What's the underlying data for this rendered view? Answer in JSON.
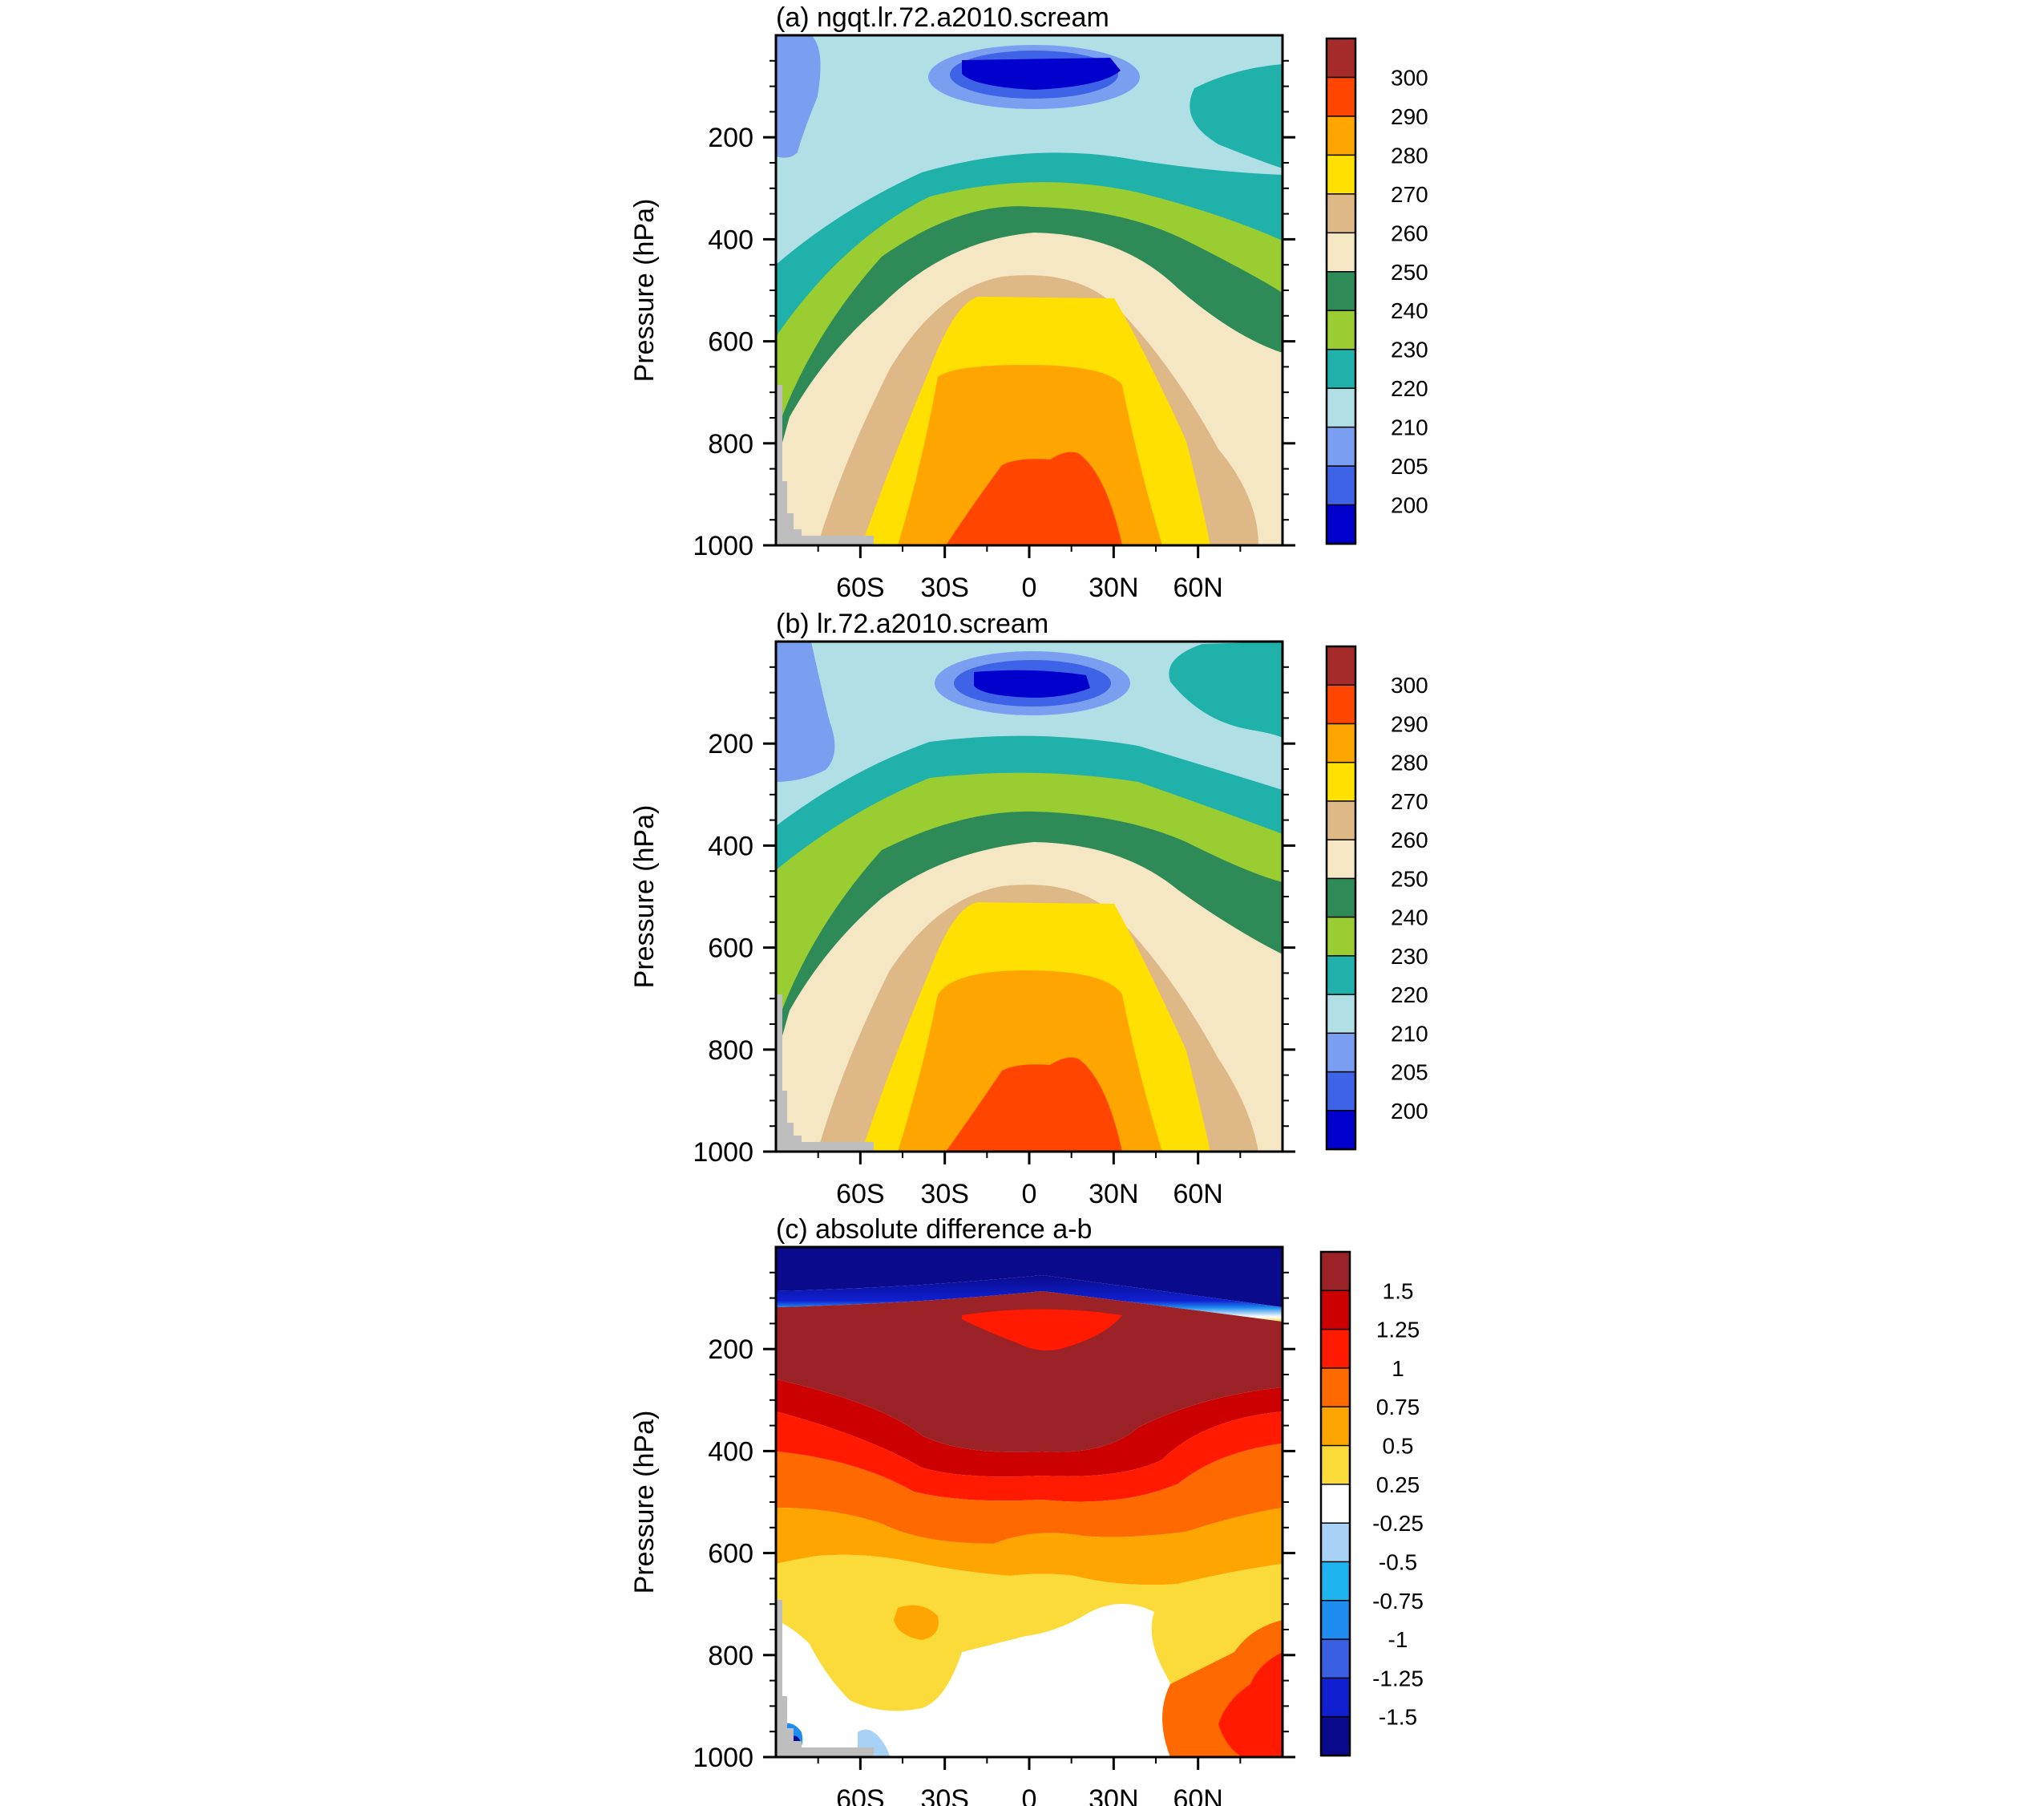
{
  "chart_data": [
    {
      "type": "heatmap",
      "id": "a",
      "title": "(a) ngqt.lr.72.a2010.scream",
      "ylabel": "Pressure (hPa)",
      "xlabel": "",
      "ylim": [
        1000,
        0
      ],
      "yticks": [
        200,
        400,
        600,
        800,
        1000
      ],
      "xticks": [
        {
          "value": -60,
          "label": "60S"
        },
        {
          "value": -30,
          "label": "30S"
        },
        {
          "value": 0,
          "label": "0"
        },
        {
          "value": 30,
          "label": "30N"
        },
        {
          "value": 60,
          "label": "60N"
        }
      ],
      "xlim": [
        -90,
        90
      ],
      "colorbar": {
        "labels": [
          "300",
          "290",
          "280",
          "270",
          "260",
          "250",
          "240",
          "230",
          "220",
          "210",
          "205",
          "200"
        ],
        "colors": [
          "#A52A2A",
          "#FF4500",
          "#FFA500",
          "#FFE000",
          "#DEB887",
          "#F5E6C4",
          "#2E8B57",
          "#9ACD32",
          "#20B2AA",
          "#B0E0E6",
          "#7B9FF0",
          "#3F63E6",
          "#0000CD"
        ]
      },
      "field_bands": [
        {
          "from": 295,
          "color": "#FF4500"
        },
        {
          "from": 285,
          "color": "#FFA500"
        },
        {
          "from": 275,
          "color": "#FFE000"
        },
        {
          "from": 265,
          "color": "#DEB887"
        },
        {
          "from": 255,
          "color": "#F5E6C4"
        },
        {
          "from": 245,
          "color": "#2E8B57"
        },
        {
          "from": 235,
          "color": "#9ACD32"
        },
        {
          "from": 225,
          "color": "#20B2AA"
        },
        {
          "from": 215,
          "color": "#B0E0E6"
        },
        {
          "from": 207.5,
          "color": "#7B9FF0"
        },
        {
          "from": 202.5,
          "color": "#3F63E6"
        },
        {
          "from": 0,
          "color": "#0000CD"
        }
      ],
      "fill_color": "#B0E0E6"
    },
    {
      "type": "heatmap",
      "id": "b",
      "title": "(b) lr.72.a2010.scream",
      "ylabel": "Pressure (hPa)",
      "xlabel": "",
      "ylim": [
        1000,
        0
      ],
      "yticks": [
        200,
        400,
        600,
        800,
        1000
      ],
      "xticks": [
        {
          "value": -60,
          "label": "60S"
        },
        {
          "value": -30,
          "label": "30S"
        },
        {
          "value": 0,
          "label": "0"
        },
        {
          "value": 30,
          "label": "30N"
        },
        {
          "value": 60,
          "label": "60N"
        }
      ],
      "xlim": [
        -90,
        90
      ],
      "colorbar": {
        "labels": [
          "300",
          "290",
          "280",
          "270",
          "260",
          "250",
          "240",
          "230",
          "220",
          "210",
          "205",
          "200"
        ],
        "colors": [
          "#A52A2A",
          "#FF4500",
          "#FFA500",
          "#FFE000",
          "#DEB887",
          "#F5E6C4",
          "#2E8B57",
          "#9ACD32",
          "#20B2AA",
          "#B0E0E6",
          "#7B9FF0",
          "#3F63E6",
          "#0000CD"
        ]
      },
      "fill_color": "#B0E0E6"
    },
    {
      "type": "heatmap",
      "id": "c",
      "title": "(c) absolute difference a-b",
      "ylabel": "Pressure (hPa)",
      "xlabel": "",
      "ylim": [
        1000,
        0
      ],
      "yticks": [
        200,
        400,
        600,
        800,
        1000
      ],
      "xticks": [
        {
          "value": -60,
          "label": "60S"
        },
        {
          "value": -30,
          "label": "30S"
        },
        {
          "value": 0,
          "label": "0"
        },
        {
          "value": 30,
          "label": "30N"
        },
        {
          "value": 60,
          "label": "60N"
        }
      ],
      "xlim": [
        -90,
        90
      ],
      "colorbar": {
        "labels": [
          "1.5",
          "1.25",
          "1",
          "0.75",
          "0.5",
          "0.25",
          "-0.25",
          "-0.5",
          "-0.75",
          "-1",
          "-1.25",
          "-1.5"
        ],
        "colors": [
          "#9B2226",
          "#CC0000",
          "#FF1A00",
          "#FF6A00",
          "#FFA500",
          "#FBDB3A",
          "#FFFFFF",
          "#A8D2F5",
          "#1EB4F0",
          "#1E8CF0",
          "#3A5FE0",
          "#1020D0",
          "#0A0A8C"
        ]
      },
      "fill_color": "#FFFFFF"
    }
  ]
}
